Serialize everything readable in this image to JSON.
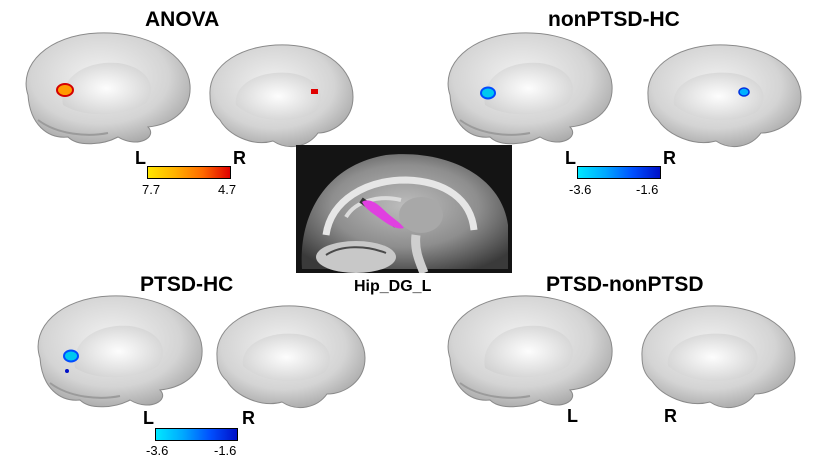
{
  "panels": {
    "anova": {
      "title": "ANOVA",
      "left_label": "L",
      "right_label": "R",
      "colorbar": {
        "min_label": "7.7",
        "max_label": "4.7",
        "colors": [
          "#ffe600",
          "#e00000"
        ]
      }
    },
    "nonptsd_hc": {
      "title": "nonPTSD-HC",
      "left_label": "L",
      "right_label": "R",
      "colorbar": {
        "min_label": "-3.6",
        "max_label": "-1.6",
        "colors": [
          "#00e8ff",
          "#0010c8"
        ]
      }
    },
    "ptsd_hc": {
      "title": "PTSD-HC",
      "left_label": "L",
      "right_label": "R",
      "colorbar": {
        "min_label": "-3.6",
        "max_label": "-1.6",
        "colors": [
          "#00e8ff",
          "#0010c8"
        ]
      }
    },
    "ptsd_nonptsd": {
      "title": "PTSD-nonPTSD",
      "left_label": "L",
      "right_label": "R"
    }
  },
  "mri": {
    "label": "Hip_DG_L",
    "roi_color": "#e040e0"
  }
}
